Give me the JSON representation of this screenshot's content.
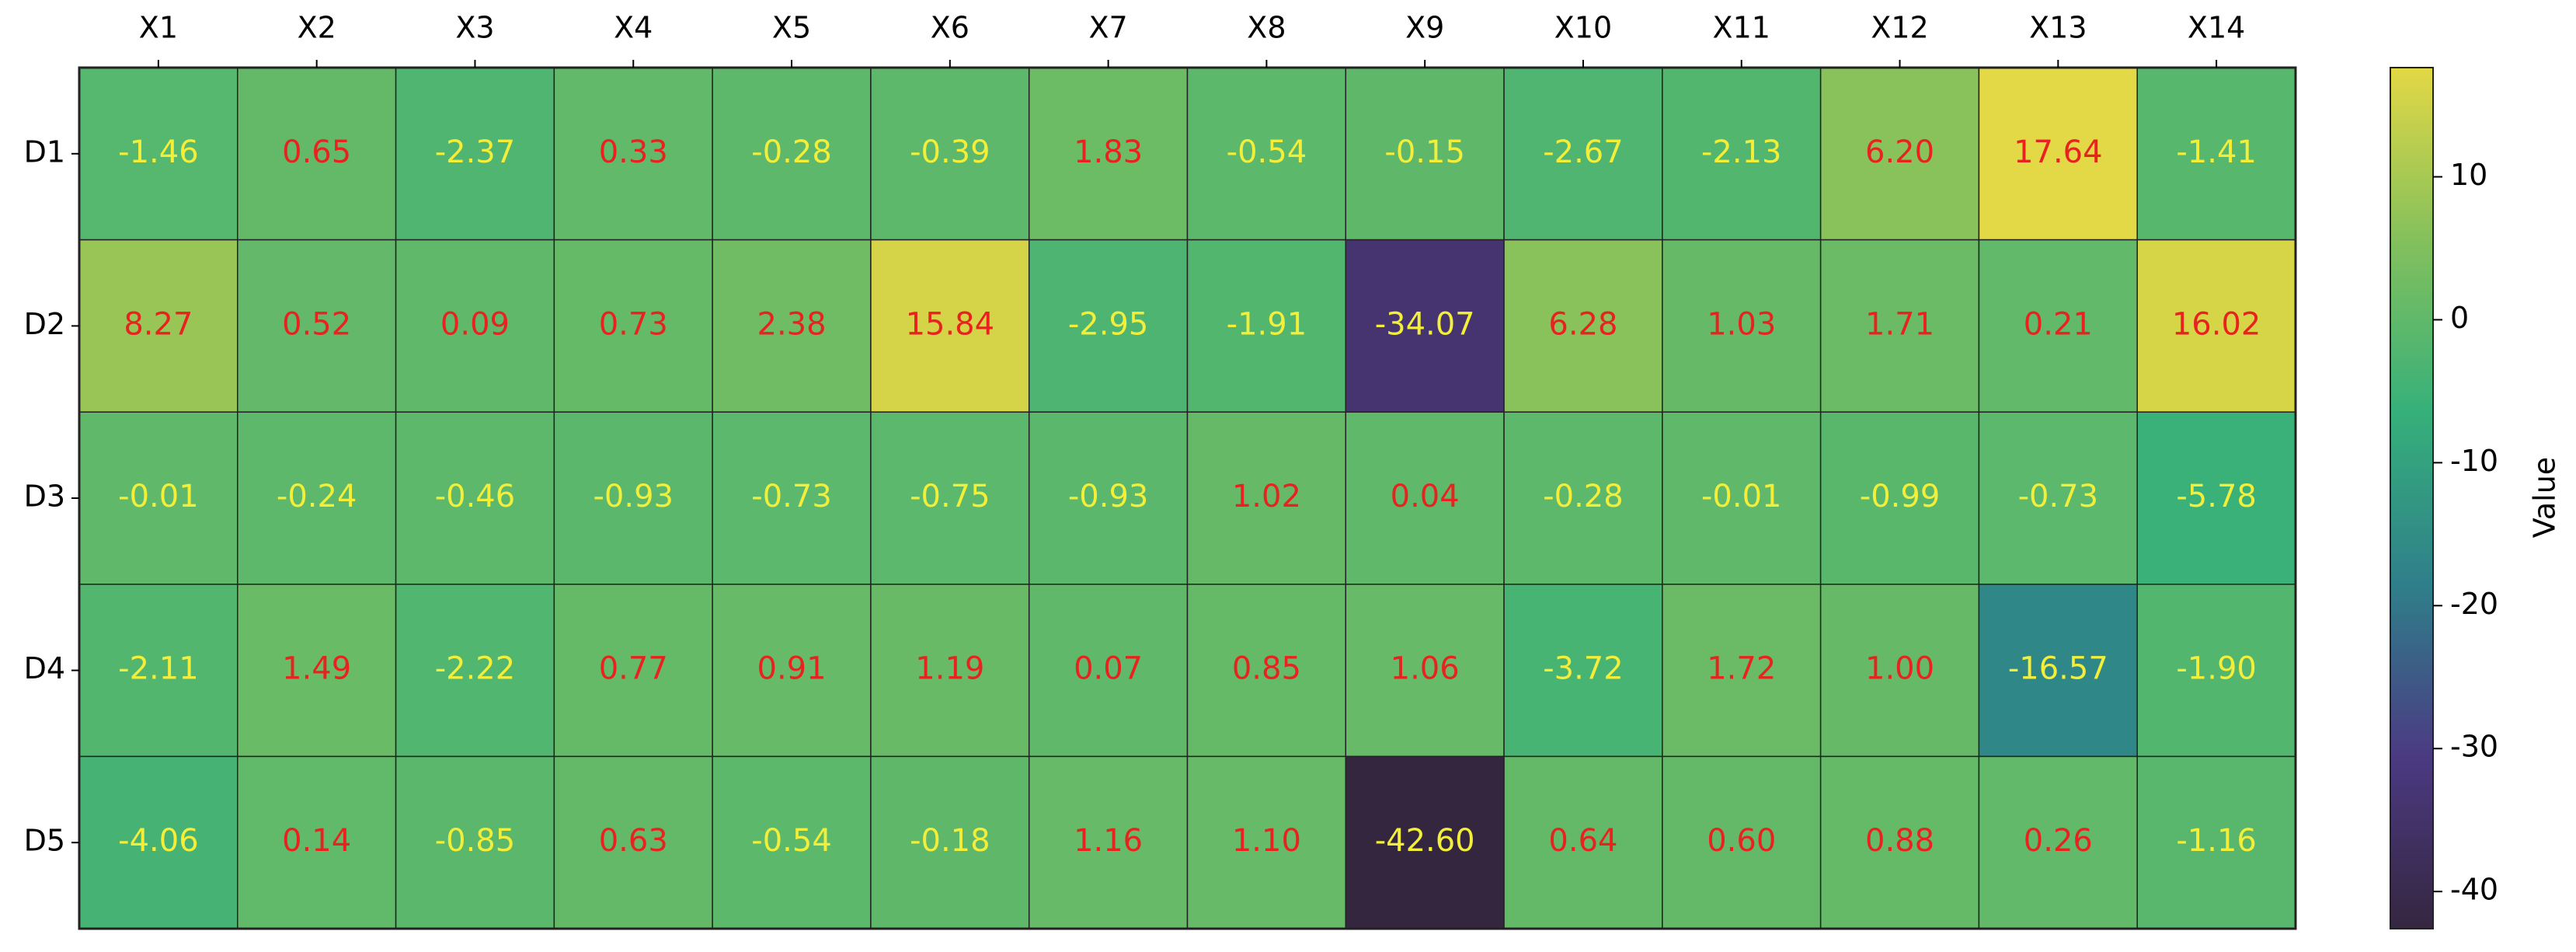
{
  "chart_data": {
    "type": "heatmap",
    "x": [
      "X1",
      "X2",
      "X3",
      "X4",
      "X5",
      "X6",
      "X7",
      "X8",
      "X9",
      "X10",
      "X11",
      "X12",
      "X13",
      "X14"
    ],
    "y": [
      "D1",
      "D2",
      "D3",
      "D4",
      "D5"
    ],
    "values": [
      [
        -1.46,
        0.65,
        -2.37,
        0.33,
        -0.28,
        -0.39,
        1.83,
        -0.54,
        -0.15,
        -2.67,
        -2.13,
        6.2,
        17.64,
        -1.41
      ],
      [
        8.27,
        0.52,
        0.09,
        0.73,
        2.38,
        15.84,
        -2.95,
        -1.91,
        -34.07,
        6.28,
        1.03,
        1.71,
        0.21,
        16.02
      ],
      [
        -0.01,
        -0.24,
        -0.46,
        -0.93,
        -0.73,
        -0.75,
        -0.93,
        1.02,
        0.04,
        -0.28,
        -0.01,
        -0.99,
        -0.73,
        -5.78
      ],
      [
        -2.11,
        1.49,
        -2.22,
        0.77,
        0.91,
        1.19,
        0.07,
        0.85,
        1.06,
        -3.72,
        1.72,
        1,
        -16.57,
        -1.9
      ],
      [
        -4.06,
        0.14,
        -0.85,
        0.63,
        -0.54,
        -0.18,
        1.16,
        1.1,
        -42.6,
        0.64,
        0.6,
        0.88,
        0.26,
        -1.16
      ]
    ],
    "value_labels": [
      [
        "-1.46",
        "0.65",
        "-2.37",
        "0.33",
        "-0.28",
        "-0.39",
        "1.83",
        "-0.54",
        "-0.15",
        "-2.67",
        "-2.13",
        "6.20",
        "17.64",
        "-1.41"
      ],
      [
        "8.27",
        "0.52",
        "0.09",
        "0.73",
        "2.38",
        "15.84",
        "-2.95",
        "-1.91",
        "-34.07",
        "6.28",
        "1.03",
        "1.71",
        "0.21",
        "16.02"
      ],
      [
        "-0.01",
        "-0.24",
        "-0.46",
        "-0.93",
        "-0.73",
        "-0.75",
        "-0.93",
        "1.02",
        "0.04",
        "-0.28",
        "-0.01",
        "-0.99",
        "-0.73",
        "-5.78"
      ],
      [
        "-2.11",
        "1.49",
        "-2.22",
        "0.77",
        "0.91",
        "1.19",
        "0.07",
        "0.85",
        "1.06",
        "-3.72",
        "1.72",
        "1.00",
        "-16.57",
        "-1.90"
      ],
      [
        "-4.06",
        "0.14",
        "-0.85",
        "0.63",
        "-0.54",
        "-0.18",
        "1.16",
        "1.10",
        "-42.60",
        "0.64",
        "0.60",
        "0.88",
        "0.26",
        "-1.16"
      ]
    ],
    "colormap": [
      "#352640",
      "#4b3a82",
      "#2f7f8a",
      "#36b07a",
      "#84c05c",
      "#e3d845"
    ],
    "clim": [
      -42.6,
      17.64
    ],
    "colorbar_label": "Value",
    "colorbar_ticks": [
      10,
      0,
      -10,
      -20,
      -30,
      -40
    ],
    "positive_label_color": "#e8231f",
    "negative_label_color": "#f2ee3a"
  }
}
